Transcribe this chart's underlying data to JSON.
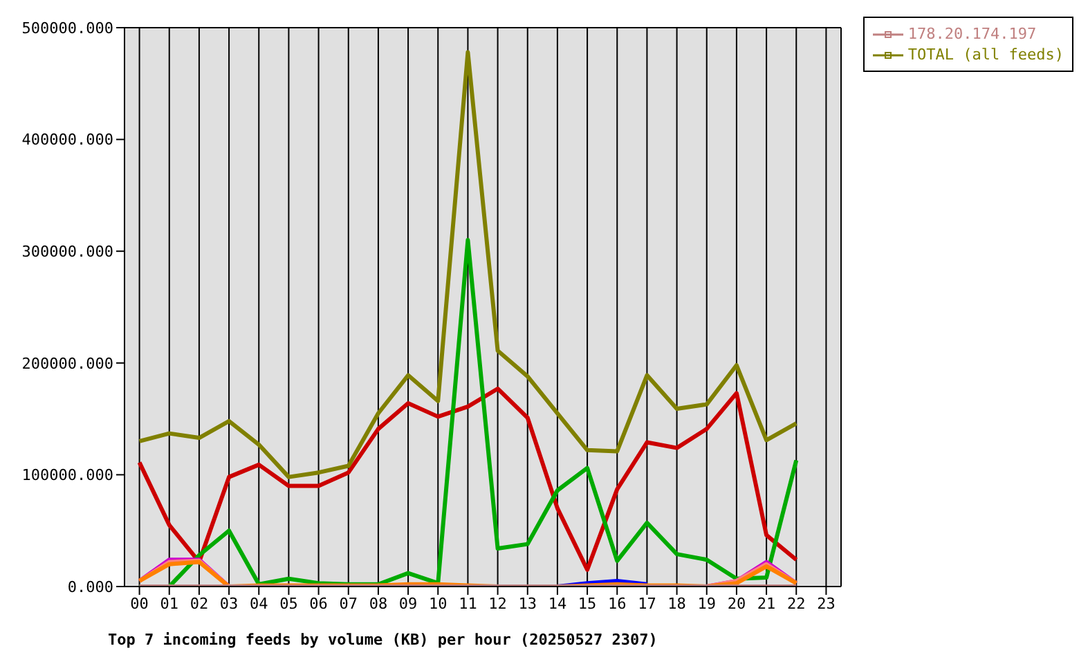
{
  "chart_data": {
    "type": "line",
    "xlabel": "Top 7 incoming feeds by volume (KB) per hour (20250527 2307)",
    "categories": [
      "00",
      "01",
      "02",
      "03",
      "04",
      "05",
      "06",
      "07",
      "08",
      "09",
      "10",
      "11",
      "12",
      "13",
      "14",
      "15",
      "16",
      "17",
      "18",
      "19",
      "20",
      "21",
      "22",
      "23"
    ],
    "ylim": [
      0,
      500000
    ],
    "yticks": [
      {
        "value": 0,
        "label": "0.000"
      },
      {
        "value": 100000,
        "label": "100000.000"
      },
      {
        "value": 200000,
        "label": "200000.000"
      },
      {
        "value": 300000,
        "label": "300000.000"
      },
      {
        "value": 400000,
        "label": "400000.000"
      },
      {
        "value": 500000,
        "label": "500000.000"
      }
    ],
    "grid": true,
    "legend": "top right",
    "series": [
      {
        "color": "#cc0000",
        "values": [
          111000,
          55000,
          22000,
          98000,
          109000,
          90000,
          90000,
          102000,
          141000,
          164000,
          152000,
          161000,
          177000,
          151000,
          70000,
          15000,
          87000,
          129000,
          124000,
          141000,
          173000,
          46000,
          24000,
          null
        ]
      },
      {
        "color": "#00aa00",
        "values": [
          0,
          0,
          28000,
          50000,
          2000,
          7000,
          3000,
          2000,
          2000,
          12000,
          3000,
          310000,
          34000,
          38000,
          86000,
          106000,
          23000,
          57000,
          29000,
          24000,
          7000,
          8000,
          113000,
          null
        ]
      },
      {
        "color": "#0000ff",
        "values": [
          null,
          null,
          null,
          null,
          null,
          null,
          null,
          null,
          null,
          null,
          null,
          null,
          null,
          null,
          0,
          3000,
          5000,
          2000,
          null,
          null,
          null,
          null,
          null,
          null
        ]
      },
      {
        "color": "#cc00cc",
        "values": [
          5000,
          24000,
          24000,
          0,
          null,
          null,
          null,
          null,
          null,
          null,
          null,
          null,
          null,
          null,
          null,
          null,
          null,
          null,
          null,
          0,
          5000,
          22000,
          3000,
          null
        ]
      },
      {
        "color": "#ff8080",
        "values": [
          5000,
          22000,
          23000,
          0,
          null,
          null,
          null,
          null,
          null,
          null,
          null,
          null,
          null,
          null,
          null,
          null,
          null,
          null,
          null,
          0,
          5000,
          20000,
          3000,
          null
        ]
      },
      {
        "color": "#ff8000",
        "values": [
          5000,
          20000,
          22000,
          0,
          1000,
          1000,
          1000,
          1000,
          1000,
          2000,
          2000,
          1000,
          0,
          0,
          0,
          1000,
          2000,
          1000,
          1000,
          0,
          3000,
          18000,
          3000,
          null
        ]
      },
      {
        "name": "178.20.174.197",
        "color": "#c08080",
        "values": [
          0,
          0,
          0,
          0,
          0,
          0,
          0,
          0,
          0,
          0,
          0,
          0,
          0,
          0,
          0,
          0,
          0,
          0,
          0,
          0,
          0,
          0,
          0,
          null
        ]
      },
      {
        "name": "TOTAL (all feeds)",
        "color": "#808000",
        "values": [
          130000,
          137000,
          133000,
          148000,
          127000,
          98000,
          102000,
          108000,
          155000,
          189000,
          166000,
          478000,
          211000,
          188000,
          155000,
          122000,
          121000,
          189000,
          159000,
          163000,
          198000,
          131000,
          146000,
          null
        ]
      }
    ]
  }
}
